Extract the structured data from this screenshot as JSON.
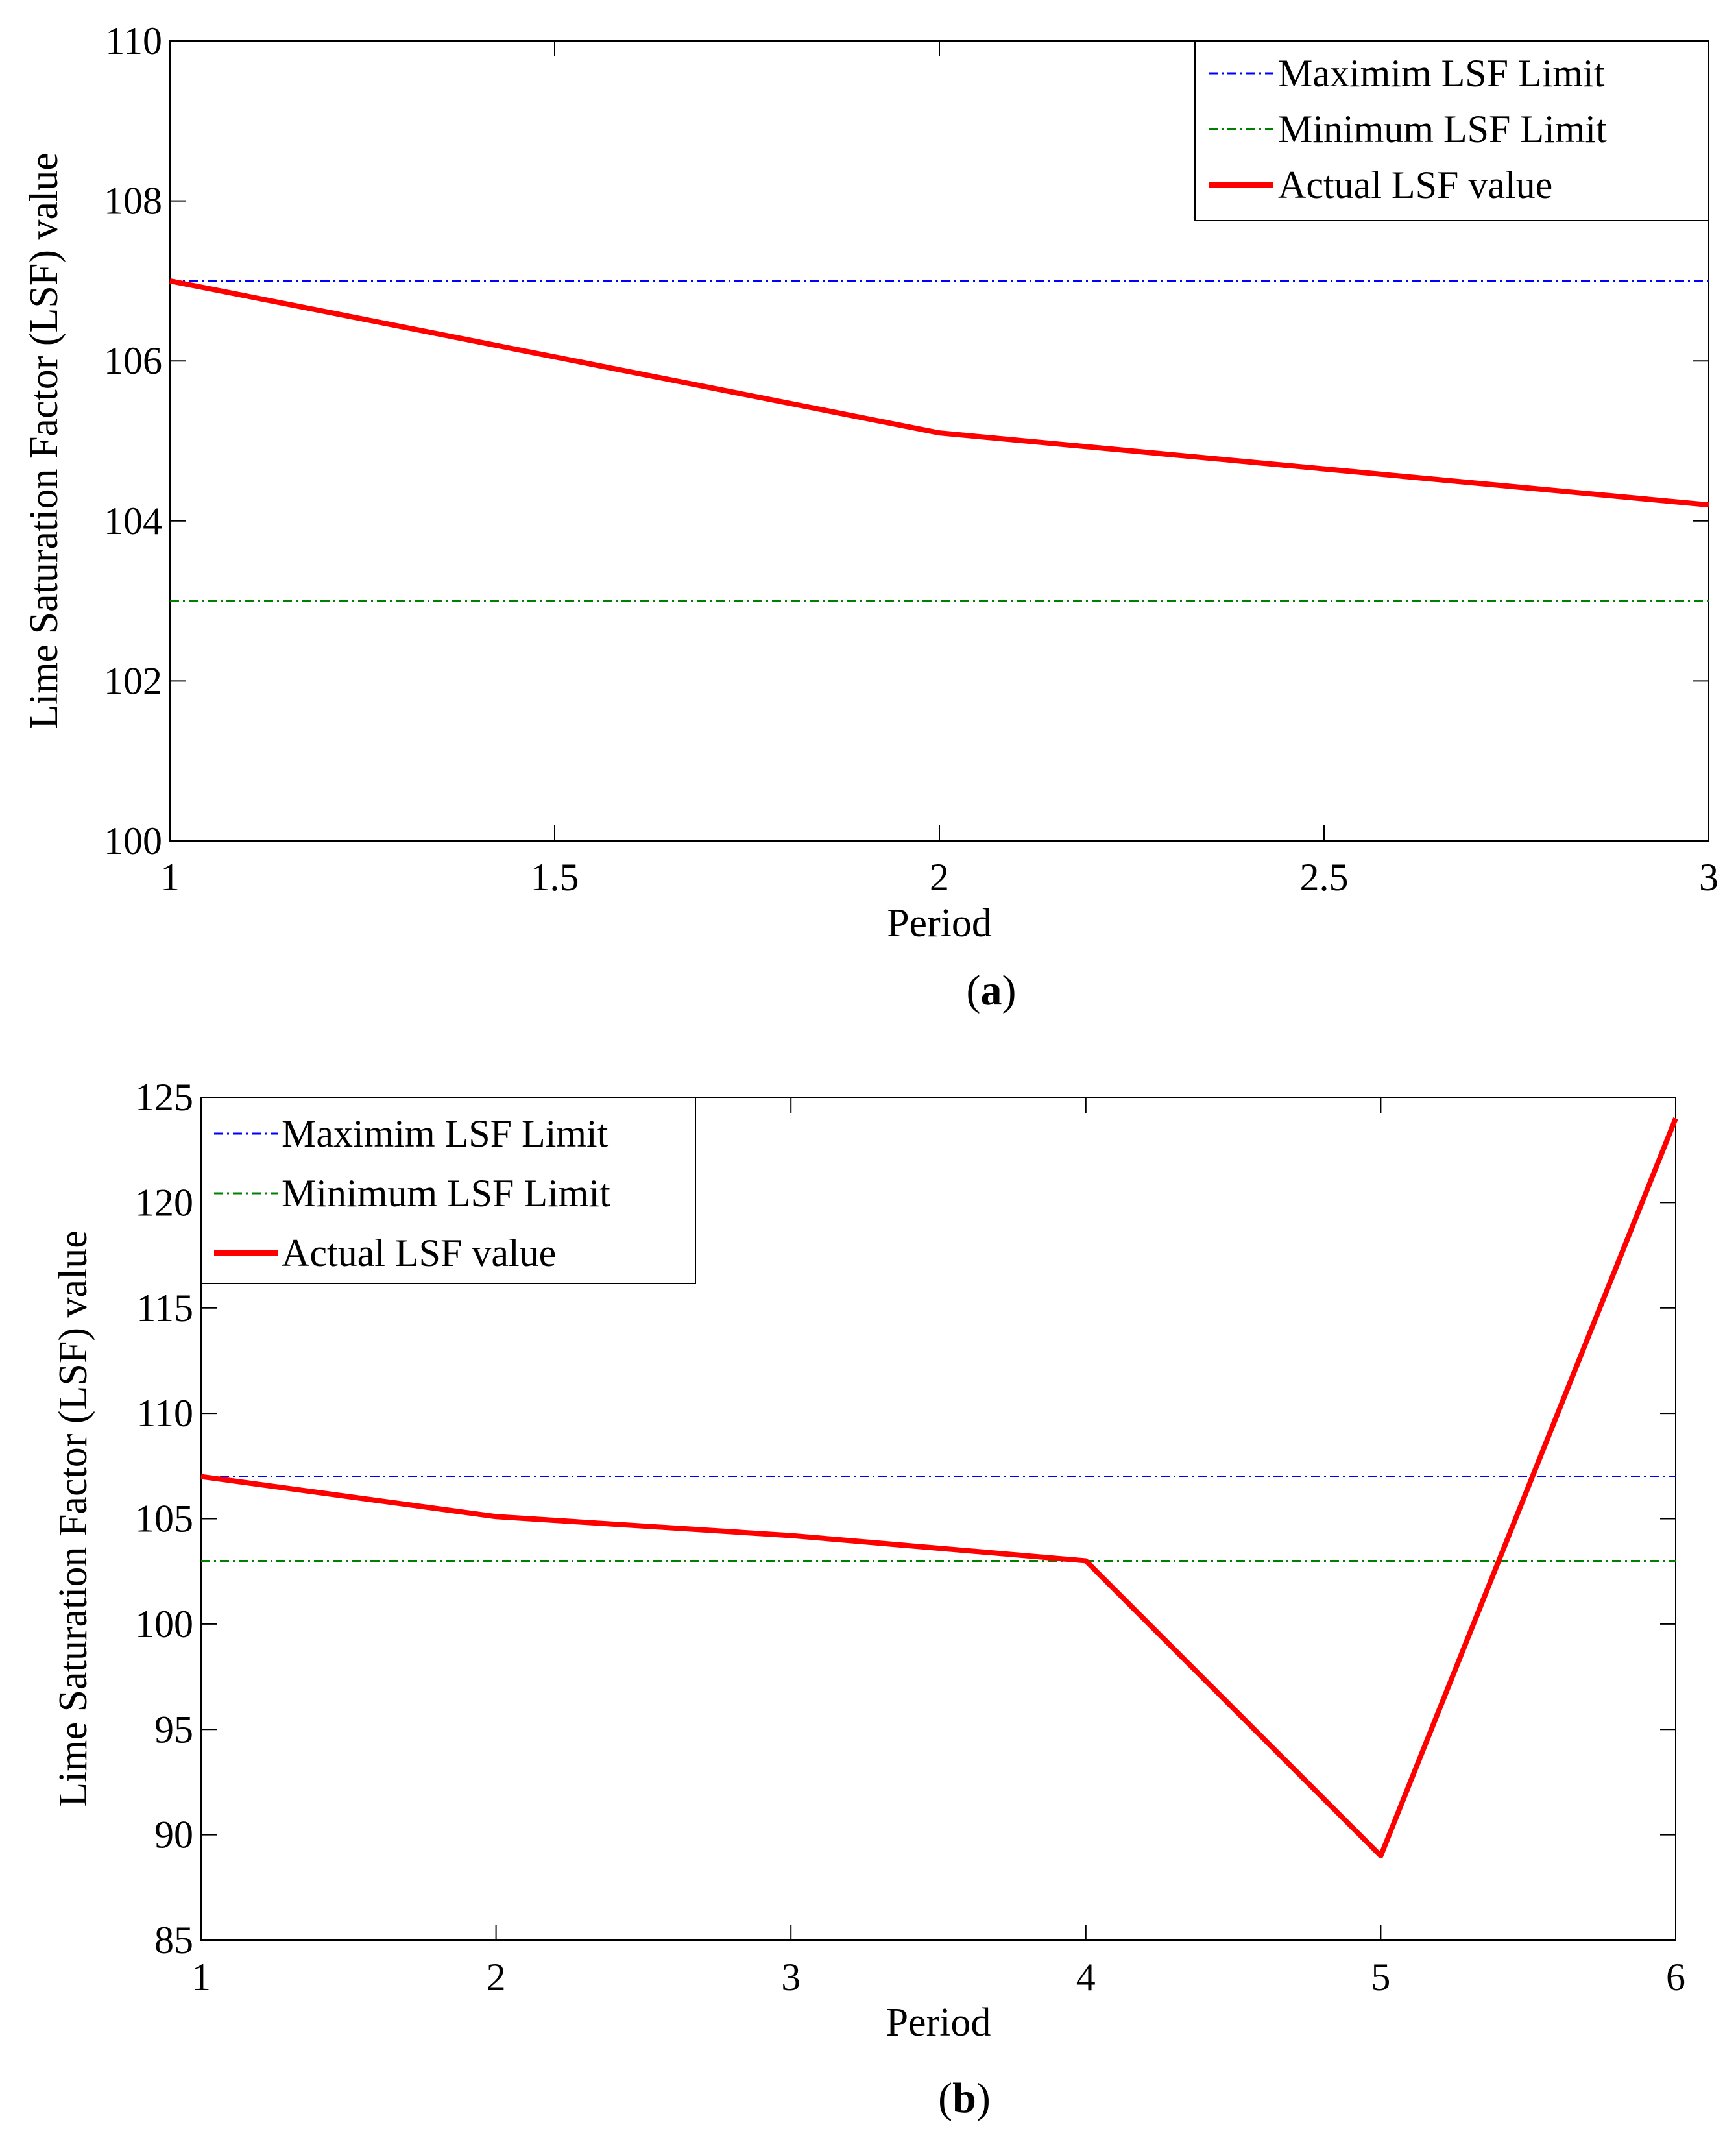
{
  "chart_data": [
    {
      "type": "line",
      "panel_label": "a",
      "title": "",
      "xlabel": "Period",
      "ylabel": "Lime Saturation Factor (LSF) value",
      "xlim": [
        1,
        3
      ],
      "ylim": [
        100,
        110
      ],
      "xticks": [
        "1",
        "1.5",
        "2",
        "2.5",
        "3"
      ],
      "yticks": [
        "100",
        "102",
        "104",
        "106",
        "108",
        "110"
      ],
      "legend_position": "top-right",
      "series": [
        {
          "name": "Maximim LSF Limit",
          "style": "dash-dot",
          "color": "#0000ff",
          "x": [
            1,
            3
          ],
          "y": [
            107,
            107
          ]
        },
        {
          "name": "Minimum LSF Limit",
          "style": "dash-dot",
          "color": "#008000",
          "x": [
            1,
            3
          ],
          "y": [
            103,
            103
          ]
        },
        {
          "name": "Actual LSF value",
          "style": "solid",
          "color": "#ff0000",
          "x": [
            1,
            2,
            3
          ],
          "y": [
            107,
            105.1,
            104.2
          ]
        }
      ]
    },
    {
      "type": "line",
      "panel_label": "b",
      "title": "",
      "xlabel": "Period",
      "ylabel": "Lime Saturation Factor (LSF) value",
      "xlim": [
        1,
        6
      ],
      "ylim": [
        85,
        125
      ],
      "xticks": [
        "1",
        "2",
        "3",
        "4",
        "5",
        "6"
      ],
      "yticks": [
        "85",
        "90",
        "95",
        "100",
        "105",
        "110",
        "115",
        "120",
        "125"
      ],
      "legend_position": "top-left",
      "series": [
        {
          "name": "Maximim LSF Limit",
          "style": "dash-dot",
          "color": "#0000ff",
          "x": [
            1,
            6
          ],
          "y": [
            107,
            107
          ]
        },
        {
          "name": "Minimum LSF Limit",
          "style": "dash-dot",
          "color": "#008000",
          "x": [
            1,
            6
          ],
          "y": [
            103,
            103
          ]
        },
        {
          "name": "Actual LSF value",
          "style": "solid",
          "color": "#ff0000",
          "x": [
            1,
            2,
            3,
            4,
            5,
            6
          ],
          "y": [
            107,
            105.1,
            104.2,
            103,
            89,
            124
          ]
        }
      ]
    }
  ]
}
